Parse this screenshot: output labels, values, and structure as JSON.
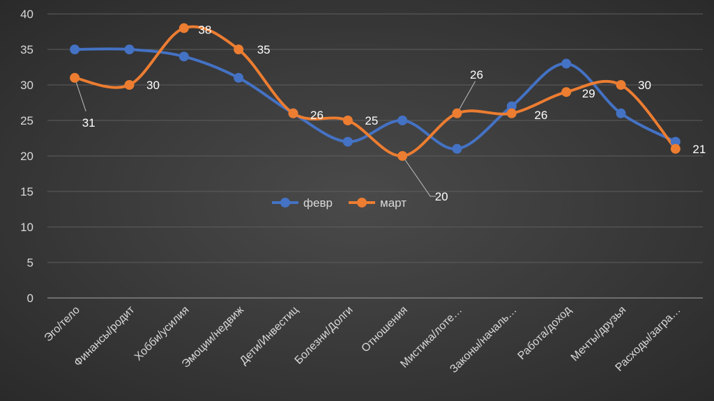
{
  "chart_data": {
    "type": "line",
    "smooth": true,
    "title": "",
    "xlabel": "",
    "ylabel": "",
    "ylim": [
      0,
      40
    ],
    "yticks": [
      0,
      5,
      10,
      15,
      20,
      25,
      30,
      35,
      40
    ],
    "grid": true,
    "legend": "center",
    "categories": [
      "Эго/тело",
      "Финансы/родит",
      "Хобби/усилия",
      "Эмоции/недвиж",
      "Дети/Инвестиц",
      "Болезни/Долги",
      "Отношения",
      "Мистика/лоте…",
      "Законы/началь…",
      "Работа/доход",
      "Мечты/друзья",
      "Расходы/загра…"
    ],
    "series": [
      {
        "name": "февр",
        "color": "#4472c4",
        "values": [
          35,
          35,
          34,
          31,
          26,
          22,
          25,
          21,
          27,
          33,
          26,
          22
        ]
      },
      {
        "name": "март",
        "color": "#ed7d31",
        "values": [
          31,
          30,
          38,
          35,
          26,
          25,
          20,
          26,
          26,
          29,
          30,
          21
        ],
        "data_labels": [
          "31",
          "30",
          "38",
          "35",
          "26",
          "25",
          "20",
          "26",
          "26",
          "29",
          "30",
          "21"
        ]
      }
    ]
  }
}
